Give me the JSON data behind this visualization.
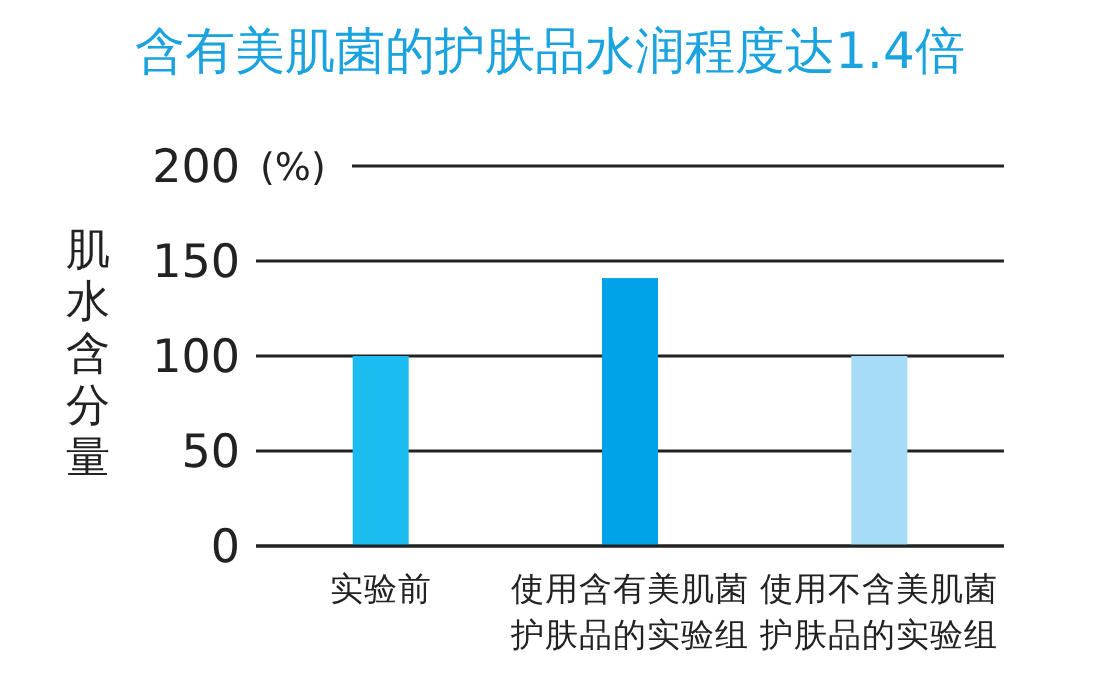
{
  "chart_data": {
    "type": "bar",
    "title": "含有美肌菌的护肤品水润程度达1.4倍",
    "ylabel": "肌水含分量",
    "annotations": [
      "(%)"
    ],
    "categories": [
      "实验前",
      "使用含有美肌菌护肤品的实验组",
      "使用不含美肌菌护肤品的实验组"
    ],
    "values": [
      100,
      141,
      100
    ],
    "colors": [
      "#1bbcef",
      "#00a3e8",
      "#a6dcf5"
    ],
    "ylim": [
      0,
      200
    ],
    "yticks": [
      0,
      50,
      100,
      150,
      200
    ],
    "grid": "y"
  }
}
